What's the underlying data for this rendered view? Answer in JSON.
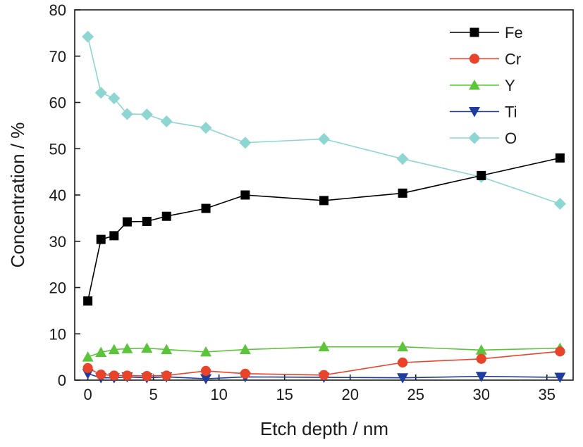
{
  "chart_data": {
    "type": "line",
    "title": "",
    "xlabel": "Etch depth / nm",
    "ylabel": "Concentration / %",
    "xlim": [
      -1,
      37
    ],
    "ylim": [
      0,
      80
    ],
    "x_ticks": [
      0,
      5,
      10,
      15,
      20,
      25,
      30,
      35
    ],
    "y_ticks": [
      0,
      10,
      20,
      30,
      40,
      50,
      60,
      70,
      80
    ],
    "grid": false,
    "legend_position": "top-right",
    "x": [
      0,
      1,
      2,
      3,
      4.5,
      6,
      9,
      12,
      18,
      24,
      30,
      36
    ],
    "series": [
      {
        "name": "Fe",
        "marker": "square",
        "color": "#000000",
        "values": [
          17.1,
          30.4,
          31.2,
          34.2,
          34.3,
          35.4,
          37.1,
          40.0,
          38.8,
          40.4,
          44.2,
          48.0
        ]
      },
      {
        "name": "Cr",
        "marker": "circle",
        "color": "#e8442a",
        "values": [
          2.6,
          1.2,
          1.0,
          1.0,
          0.9,
          1.0,
          2.0,
          1.4,
          1.1,
          3.8,
          4.6,
          6.2
        ]
      },
      {
        "name": "Y",
        "marker": "triangle-up",
        "color": "#5cc43b",
        "values": [
          5.0,
          6.0,
          6.6,
          6.8,
          6.9,
          6.6,
          6.1,
          6.6,
          7.2,
          7.2,
          6.5,
          6.9
        ]
      },
      {
        "name": "Ti",
        "marker": "triangle-down",
        "color": "#1f3c9e",
        "values": [
          1.4,
          0.5,
          0.5,
          0.7,
          0.5,
          0.7,
          0.3,
          0.7,
          0.6,
          0.5,
          0.8,
          0.6
        ]
      },
      {
        "name": "O",
        "marker": "diamond",
        "color": "#8ed6d2",
        "values": [
          74.2,
          62.1,
          60.9,
          57.5,
          57.4,
          55.9,
          54.5,
          51.3,
          52.1,
          47.8,
          43.9,
          38.1
        ]
      }
    ]
  }
}
